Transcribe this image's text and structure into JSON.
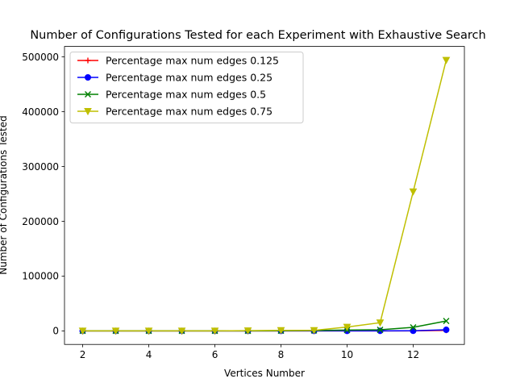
{
  "chart_data": {
    "type": "line",
    "title": "Number of Configurations Tested for each Experiment with Exhaustive Search",
    "xlabel": "Vertices Number",
    "ylabel": "Number of Configurations Tested",
    "xlim": [
      1.45,
      13.55
    ],
    "ylim": [
      -24700,
      519000
    ],
    "x_ticks": [
      2,
      4,
      6,
      8,
      10,
      12
    ],
    "y_ticks": [
      0,
      100000,
      200000,
      300000,
      400000,
      500000
    ],
    "grid": false,
    "legend_position": "top-left",
    "x": [
      2,
      3,
      4,
      5,
      6,
      7,
      8,
      9,
      10,
      11,
      12,
      13
    ],
    "series": [
      {
        "name": "Percentage max num edges 0.125",
        "color": "#ff0000",
        "marker": "plus",
        "values": [
          1,
          1,
          1,
          1,
          3,
          5,
          7,
          9,
          12,
          16,
          33,
          1000
        ]
      },
      {
        "name": "Percentage max num edges 0.25",
        "color": "#0000ff",
        "marker": "circle",
        "values": [
          1,
          1,
          2,
          3,
          6,
          10,
          15,
          28,
          46,
          80,
          200,
          2000
        ]
      },
      {
        "name": "Percentage max num edges 0.5",
        "color": "#008000",
        "marker": "x",
        "values": [
          1,
          2,
          4,
          11,
          35,
          85,
          240,
          700,
          1500,
          2000,
          6500,
          18000
        ]
      },
      {
        "name": "Percentage max num edges 0.75",
        "color": "#bfbf00",
        "marker": "triangle-down",
        "values": [
          1,
          3,
          10,
          35,
          130,
          450,
          1000,
          1000,
          7000,
          15000,
          254000,
          494000
        ]
      }
    ]
  }
}
